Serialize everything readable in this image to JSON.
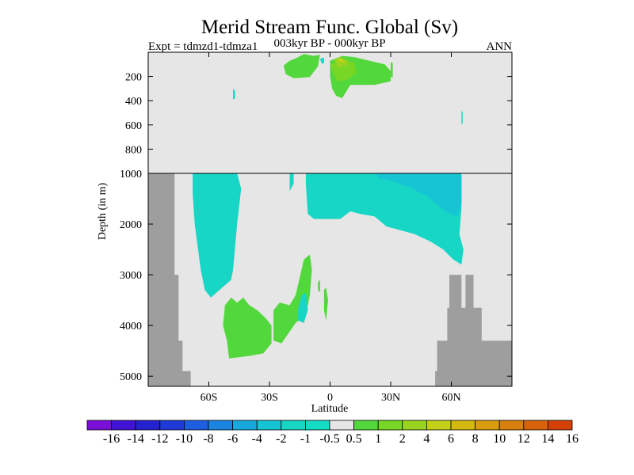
{
  "chart_data": {
    "type": "heatmap",
    "title": "Merid Stream Func. Global (Sv)",
    "subtitle_left": "Expt = tdmzd1-tdmza1",
    "subtitle_center": "003kyr BP - 000kyr BP",
    "subtitle_right": "ANN",
    "xlabel": "Latitude",
    "ylabel": "Depth (in m)",
    "xlim": [
      -90,
      90
    ],
    "upper_panel": {
      "ylim": [
        0,
        1000
      ],
      "yticks": [
        200,
        400,
        600,
        800,
        1000
      ],
      "ytick_labels": [
        "200",
        "400",
        "600",
        "800",
        "1000"
      ]
    },
    "lower_panel": {
      "ylim": [
        1000,
        5200
      ],
      "yticks": [
        2000,
        3000,
        4000,
        5000
      ],
      "ytick_labels": [
        "2000",
        "3000",
        "4000",
        "5000"
      ]
    },
    "xticks": [
      -60,
      -30,
      0,
      30,
      60
    ],
    "xtick_labels": [
      "60S",
      "30S",
      "0",
      "30N",
      "60N"
    ],
    "levels": [
      "-16",
      "-14",
      "-12",
      "-10",
      "-8",
      "-6",
      "-4",
      "-2",
      "-1",
      "-0.5",
      "0.5",
      "1",
      "2",
      "4",
      "6",
      "8",
      "10",
      "12",
      "14",
      "16"
    ],
    "colors": [
      "#7a0fd8",
      "#3f12d4",
      "#2422cf",
      "#1f3ad6",
      "#1e5ee0",
      "#1a84e0",
      "#19a8dc",
      "#17c4d4",
      "#17d6c6",
      "#16dcc6",
      "#e6e6e6",
      "#52d83c",
      "#78d624",
      "#9ad420",
      "#c4d01c",
      "#d4b812",
      "#d89c0e",
      "#d8800c",
      "#d8620a",
      "#d44008"
    ],
    "background_color": "#e6e6e6",
    "land_color": "#9e9e9e",
    "regions": [
      {
        "panel": "upper",
        "level": "1",
        "poly": [
          [
            -17,
            50
          ],
          [
            -13,
            15
          ],
          [
            -8,
            30
          ],
          [
            -5,
            20
          ],
          [
            -6,
            115
          ],
          [
            -10,
            205
          ],
          [
            -18,
            215
          ],
          [
            -22,
            180
          ],
          [
            -23,
            110
          ],
          [
            -20,
            70
          ]
        ]
      },
      {
        "panel": "upper",
        "level": "1",
        "poly": [
          [
            0,
            200
          ],
          [
            0,
            70
          ],
          [
            6,
            30
          ],
          [
            12,
            40
          ],
          [
            22,
            80
          ],
          [
            27,
            100
          ],
          [
            30,
            155
          ],
          [
            30,
            240
          ],
          [
            22,
            270
          ],
          [
            10,
            270
          ],
          [
            6,
            380
          ],
          [
            3,
            360
          ],
          [
            1,
            300
          ]
        ]
      },
      {
        "panel": "upper",
        "level": "2",
        "poly": [
          [
            0,
            100
          ],
          [
            5,
            70
          ],
          [
            12,
            80
          ],
          [
            13,
            170
          ],
          [
            9,
            225
          ],
          [
            4,
            240
          ],
          [
            2,
            190
          ]
        ]
      },
      {
        "panel": "upper",
        "level": "4",
        "poly": [
          [
            2,
            60
          ],
          [
            5,
            40
          ],
          [
            9,
            70
          ],
          [
            8,
            110
          ],
          [
            4,
            125
          ]
        ]
      },
      {
        "panel": "upper",
        "level": "6",
        "poly": [
          [
            4,
            55
          ],
          [
            6,
            50
          ],
          [
            7,
            80
          ],
          [
            5,
            85
          ]
        ]
      },
      {
        "panel": "upper",
        "level": "1",
        "poly": [
          [
            30,
            80
          ],
          [
            31,
            90
          ],
          [
            31,
            210
          ],
          [
            30,
            200
          ]
        ]
      },
      {
        "panel": "upper",
        "level": "-1",
        "poly": [
          [
            -5,
            60
          ],
          [
            -4,
            45
          ],
          [
            -3,
            50
          ],
          [
            -3,
            90
          ],
          [
            -4,
            95
          ]
        ]
      },
      {
        "panel": "upper",
        "level": "-1",
        "poly": [
          [
            -48,
            300
          ],
          [
            -47,
            320
          ],
          [
            -47,
            380
          ],
          [
            -48,
            390
          ]
        ]
      },
      {
        "panel": "upper",
        "level": "-1",
        "poly": [
          [
            65,
            480
          ],
          [
            65.6,
            500
          ],
          [
            65.6,
            580
          ],
          [
            65,
            600
          ]
        ]
      },
      {
        "panel": "lower",
        "level": "-1",
        "poly": [
          [
            -68,
            1000
          ],
          [
            -55,
            1000
          ],
          [
            -52,
            1000
          ],
          [
            -46,
            1000
          ],
          [
            -44,
            1300
          ],
          [
            -46,
            2000
          ],
          [
            -48,
            2900
          ],
          [
            -49,
            3100
          ],
          [
            -59,
            3450
          ],
          [
            -62,
            3300
          ],
          [
            -64,
            2900
          ],
          [
            -67,
            2000
          ],
          [
            -68,
            1400
          ]
        ]
      },
      {
        "panel": "lower",
        "level": "-1",
        "poly": [
          [
            -20,
            1000
          ],
          [
            -20,
            1350
          ],
          [
            -18,
            1200
          ],
          [
            -18,
            1000
          ]
        ]
      },
      {
        "panel": "lower",
        "level": "-1",
        "poly": [
          [
            -12,
            1000
          ],
          [
            -12,
            1200
          ],
          [
            -11,
            1800
          ],
          [
            -8,
            1900
          ],
          [
            -5,
            1800
          ],
          [
            -3,
            1300
          ],
          [
            -1,
            1100
          ],
          [
            2,
            1300
          ],
          [
            5,
            1250
          ],
          [
            7,
            1100
          ],
          [
            8,
            1000
          ]
        ]
      },
      {
        "panel": "lower",
        "level": "-1",
        "poly": [
          [
            -10,
            1000
          ],
          [
            -10,
            1150
          ],
          [
            -9,
            1100
          ],
          [
            -9,
            1000
          ]
        ]
      },
      {
        "panel": "lower",
        "level": "-1",
        "poly": [
          [
            -6,
            1000
          ],
          [
            -4,
            1000
          ],
          [
            -5,
            1300
          ],
          [
            -7,
            1300
          ]
        ]
      },
      {
        "panel": "lower",
        "level": "-1",
        "poly": [
          [
            -8,
            1000
          ],
          [
            65,
            1000
          ],
          [
            65,
            1700
          ],
          [
            64,
            2200
          ],
          [
            66,
            2500
          ],
          [
            65,
            2800
          ],
          [
            61,
            2700
          ],
          [
            56,
            2500
          ],
          [
            50,
            2350
          ],
          [
            42,
            2200
          ],
          [
            33,
            2100
          ],
          [
            28,
            2050
          ],
          [
            22,
            1850
          ],
          [
            15,
            1800
          ],
          [
            10,
            1750
          ],
          [
            5,
            1900
          ],
          [
            -8,
            1900
          ]
        ]
      },
      {
        "panel": "lower",
        "level": "-2",
        "poly": [
          [
            23,
            1000
          ],
          [
            65,
            1000
          ],
          [
            65,
            1600
          ],
          [
            63,
            1850
          ],
          [
            57,
            1750
          ],
          [
            48,
            1450
          ],
          [
            38,
            1250
          ],
          [
            30,
            1150
          ],
          [
            24,
            1100
          ]
        ]
      },
      {
        "panel": "lower",
        "level": "1",
        "poly": [
          [
            -52,
            3600
          ],
          [
            -49,
            3450
          ],
          [
            -46,
            3550
          ],
          [
            -43,
            3450
          ],
          [
            -40,
            3600
          ],
          [
            -36,
            3700
          ],
          [
            -32,
            3850
          ],
          [
            -29,
            4000
          ],
          [
            -29,
            4350
          ],
          [
            -33,
            4550
          ],
          [
            -40,
            4600
          ],
          [
            -50,
            4650
          ],
          [
            -51,
            4300
          ],
          [
            -53,
            4000
          ]
        ]
      },
      {
        "panel": "lower",
        "level": "1",
        "poly": [
          [
            -28,
            3700
          ],
          [
            -25,
            3550
          ],
          [
            -20,
            3600
          ],
          [
            -17,
            3400
          ],
          [
            -13,
            2700
          ],
          [
            -10,
            2600
          ],
          [
            -9,
            2900
          ],
          [
            -10,
            3400
          ],
          [
            -12,
            3800
          ],
          [
            -17,
            3950
          ],
          [
            -24,
            4350
          ],
          [
            -28,
            4300
          ]
        ]
      },
      {
        "panel": "lower",
        "level": "-1",
        "poly": [
          [
            -16,
            3700
          ],
          [
            -14,
            3400
          ],
          [
            -12,
            3350
          ],
          [
            -11,
            3700
          ],
          [
            -13,
            3950
          ],
          [
            -16,
            3900
          ]
        ]
      },
      {
        "panel": "lower",
        "level": "1",
        "poly": [
          [
            -3,
            3300
          ],
          [
            -2,
            3250
          ],
          [
            -1,
            3500
          ],
          [
            -2,
            3900
          ],
          [
            -3,
            3700
          ]
        ]
      },
      {
        "panel": "lower",
        "level": "1",
        "poly": [
          [
            -6,
            3150
          ],
          [
            -5,
            3100
          ],
          [
            -5,
            3350
          ],
          [
            -6,
            3300
          ]
        ]
      }
    ],
    "land": [
      {
        "panel": "lower",
        "poly": [
          [
            -90,
            1000
          ],
          [
            -77,
            1000
          ],
          [
            -77,
            3000
          ],
          [
            -75,
            3000
          ],
          [
            -75,
            4300
          ],
          [
            -73,
            4300
          ],
          [
            -73,
            4900
          ],
          [
            -69,
            4900
          ],
          [
            -69,
            5200
          ],
          [
            -90,
            5200
          ]
        ]
      },
      {
        "panel": "lower",
        "poly": [
          [
            52,
            5200
          ],
          [
            52,
            4900
          ],
          [
            53,
            4900
          ],
          [
            53,
            4300
          ],
          [
            58,
            4300
          ],
          [
            58,
            3650
          ],
          [
            59,
            3650
          ],
          [
            59,
            3000
          ],
          [
            65,
            3000
          ],
          [
            65,
            3650
          ],
          [
            67,
            3650
          ],
          [
            67,
            3000
          ],
          [
            71,
            3000
          ],
          [
            71,
            3650
          ],
          [
            75,
            3650
          ],
          [
            75,
            4300
          ],
          [
            90,
            4300
          ],
          [
            90,
            5200
          ]
        ]
      }
    ]
  }
}
